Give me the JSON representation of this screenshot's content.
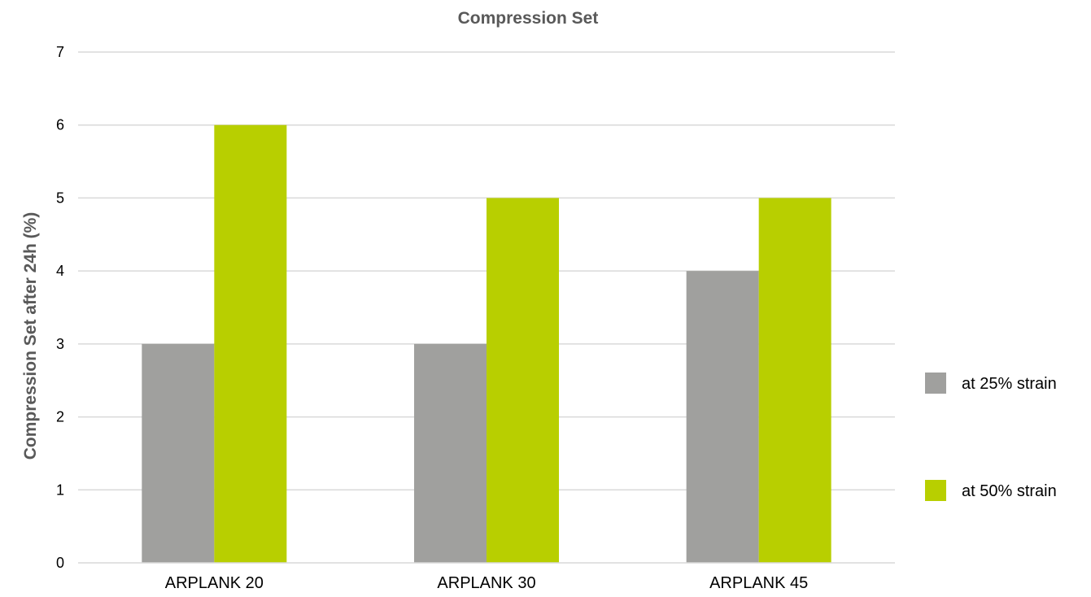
{
  "chart_data": {
    "type": "bar",
    "title": "Compression Set",
    "xlabel": "",
    "ylabel": "Compression Set after 24h (%)",
    "categories": [
      "ARPLANK 20",
      "ARPLANK 30",
      "ARPLANK 45"
    ],
    "series": [
      {
        "name": "at 25% strain",
        "values": [
          3,
          3,
          4
        ],
        "color": "#a0a09e"
      },
      {
        "name": "at 50% strain",
        "values": [
          6,
          5,
          5
        ],
        "color": "#b8cf00"
      }
    ],
    "ylim": [
      0,
      7
    ],
    "yticks": [
      0,
      1,
      2,
      3,
      4,
      5,
      6,
      7
    ],
    "grid": true,
    "legend_position": "right"
  }
}
